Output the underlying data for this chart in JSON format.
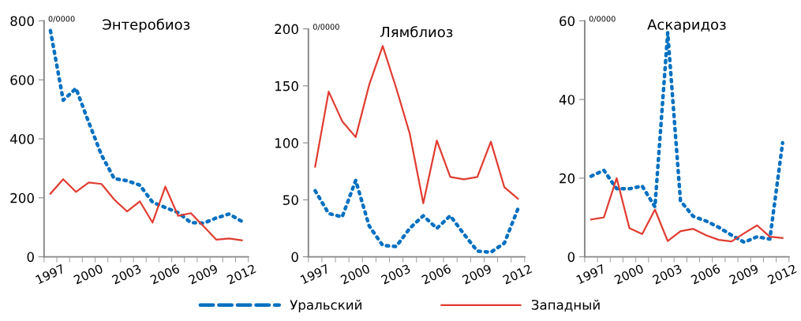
{
  "chart_data": [
    {
      "type": "line",
      "title": "Энтеробиоз",
      "ylabel": "0/0000",
      "categories": [
        "1997",
        null,
        null,
        "2000",
        null,
        null,
        "2003",
        null,
        null,
        "2006",
        null,
        null,
        "2009",
        null,
        null,
        "2012"
      ],
      "ylim": [
        0,
        800
      ],
      "yticks": [
        0,
        200,
        400,
        600,
        800
      ],
      "grid": false,
      "legend": "bottom",
      "marker": "none",
      "series": [
        {
          "name": "Уральский",
          "color": "#0070c0",
          "line_style": "dotted",
          "values": [
            767,
            531,
            571,
            456,
            345,
            265,
            258,
            243,
            185,
            167,
            150,
            116,
            114,
            132,
            145,
            120
          ]
        },
        {
          "name": "Западный",
          "color": "#e03c31",
          "line_style": "solid",
          "values": [
            214,
            263,
            220,
            252,
            247,
            194,
            154,
            188,
            116,
            238,
            139,
            148,
            103,
            58,
            62,
            56
          ]
        }
      ]
    },
    {
      "type": "line",
      "title": "Лямблиоз",
      "ylabel": "0/0000",
      "categories": [
        "1997",
        null,
        null,
        "2000",
        null,
        null,
        "2003",
        null,
        null,
        "2006",
        null,
        null,
        "2009",
        null,
        null,
        "2012"
      ],
      "ylim": [
        0,
        200
      ],
      "yticks": [
        0,
        50,
        100,
        150,
        200
      ],
      "grid": false,
      "marker": "none",
      "series": [
        {
          "color": "#0070c0",
          "line_style": "dotted",
          "values": [
            58,
            38,
            35,
            67,
            27,
            10,
            9,
            25,
            36,
            25,
            36,
            20,
            5,
            4,
            12,
            42
          ]
        },
        {
          "color": "#e03c31",
          "line_style": "solid",
          "values": [
            79,
            145,
            119,
            105,
            151,
            185,
            148,
            108,
            47,
            102,
            70,
            68,
            70,
            101,
            61,
            51
          ]
        }
      ]
    },
    {
      "type": "line",
      "title": "Аскаридоз",
      "ylabel": "0/0000",
      "categories": [
        "1997",
        null,
        null,
        "2000",
        null,
        null,
        "2003",
        null,
        null,
        "2006",
        null,
        null,
        "2009",
        null,
        null,
        "2012"
      ],
      "ylim": [
        0,
        60
      ],
      "yticks": [
        0,
        20,
        40,
        60
      ],
      "grid": false,
      "marker": "none",
      "series": [
        {
          "color": "#0070c0",
          "line_style": "dotted",
          "values": [
            20.5,
            22,
            17.3,
            17.3,
            18,
            12.7,
            57,
            14.2,
            10.3,
            9.1,
            7.5,
            5.5,
            3.7,
            5.1,
            4.5,
            29
          ]
        },
        {
          "color": "#e03c31",
          "line_style": "solid",
          "values": [
            9.5,
            10,
            20,
            7.3,
            5.8,
            12,
            4,
            6.5,
            7.1,
            5.5,
            4.3,
            3.9,
            6,
            8,
            5.1,
            4.8
          ]
        }
      ]
    }
  ]
}
